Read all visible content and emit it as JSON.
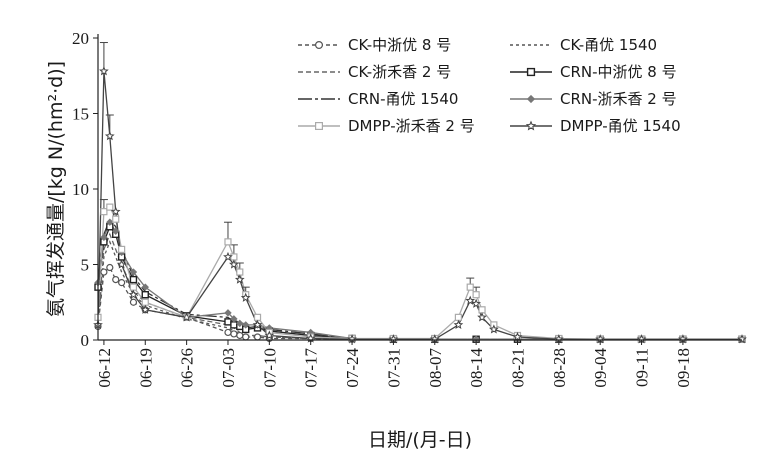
{
  "chart_data": {
    "type": "line",
    "xlabel": "日期/(月-日)",
    "ylabel": "氨气挥发通量/[kg N/(hm²·d)]",
    "ylim": [
      0,
      20
    ],
    "yticks": [
      0,
      5,
      10,
      15,
      20
    ],
    "xlim": [
      "2000-06-11",
      "2000-09-28"
    ],
    "xticks": [
      "06-12",
      "06-19",
      "06-26",
      "07-03",
      "07-10",
      "07-17",
      "07-24",
      "07-31",
      "08-07",
      "08-14",
      "08-21",
      "08-28",
      "09-04",
      "09-11",
      "09-18"
    ],
    "legend_position": "top-right",
    "grid": false,
    "series": [
      {
        "name": "CK-中浙优 8 号",
        "color": "#555555",
        "dash": "4,3",
        "marker": "circle",
        "points": [
          [
            "06-11",
            0.9
          ],
          [
            "06-12",
            4.5
          ],
          [
            "06-13",
            4.8
          ],
          [
            "06-14",
            4.0
          ],
          [
            "06-15",
            3.8
          ],
          [
            "06-17",
            2.5
          ],
          [
            "06-19",
            2.0
          ],
          [
            "06-26",
            1.5
          ],
          [
            "07-03",
            0.5
          ],
          [
            "07-04",
            0.4
          ],
          [
            "07-05",
            0.3
          ],
          [
            "07-06",
            0.2
          ],
          [
            "07-08",
            0.2
          ],
          [
            "07-10",
            0.1
          ],
          [
            "07-17",
            0.1
          ],
          [
            "07-24",
            0.05
          ],
          [
            "07-31",
            0.05
          ],
          [
            "08-07",
            0.05
          ],
          [
            "08-14",
            0.05
          ],
          [
            "08-21",
            0.05
          ],
          [
            "08-28",
            0.05
          ],
          [
            "09-04",
            0.05
          ],
          [
            "09-11",
            0.05
          ],
          [
            "09-18",
            0.05
          ],
          [
            "09-28",
            0.05
          ]
        ]
      },
      {
        "name": "CK-甬优 1540",
        "color": "#555555",
        "dash": "3,3",
        "marker": "none",
        "points": [
          [
            "06-11",
            1.0
          ],
          [
            "06-12",
            5.5
          ],
          [
            "06-13",
            6.5
          ],
          [
            "06-14",
            5.5
          ],
          [
            "06-15",
            4.5
          ],
          [
            "06-17",
            3.0
          ],
          [
            "06-19",
            2.3
          ],
          [
            "06-26",
            1.4
          ],
          [
            "07-03",
            0.8
          ],
          [
            "07-04",
            0.6
          ],
          [
            "07-05",
            0.4
          ],
          [
            "07-06",
            0.3
          ],
          [
            "07-08",
            0.3
          ],
          [
            "07-10",
            0.2
          ],
          [
            "07-17",
            0.1
          ],
          [
            "07-24",
            0.05
          ],
          [
            "07-31",
            0.05
          ],
          [
            "08-07",
            0.05
          ],
          [
            "08-14",
            0.05
          ],
          [
            "08-21",
            0.05
          ],
          [
            "08-28",
            0.05
          ],
          [
            "09-04",
            0.05
          ],
          [
            "09-11",
            0.05
          ],
          [
            "09-18",
            0.05
          ],
          [
            "09-28",
            0.05
          ]
        ]
      },
      {
        "name": "CK-浙禾香 2 号",
        "color": "#666666",
        "dash": "5,3",
        "marker": "none",
        "points": [
          [
            "06-11",
            1.2
          ],
          [
            "06-12",
            6.0
          ],
          [
            "06-13",
            7.0
          ],
          [
            "06-14",
            6.0
          ],
          [
            "06-15",
            5.0
          ],
          [
            "06-17",
            3.2
          ],
          [
            "06-19",
            2.5
          ],
          [
            "06-26",
            1.5
          ],
          [
            "07-03",
            1.0
          ],
          [
            "07-04",
            0.8
          ],
          [
            "07-05",
            0.5
          ],
          [
            "07-06",
            0.3
          ],
          [
            "07-08",
            0.3
          ],
          [
            "07-10",
            0.2
          ],
          [
            "07-17",
            0.1
          ],
          [
            "07-24",
            0.05
          ],
          [
            "07-31",
            0.05
          ],
          [
            "08-07",
            0.05
          ],
          [
            "08-14",
            0.05
          ],
          [
            "08-21",
            0.05
          ],
          [
            "08-28",
            0.05
          ],
          [
            "09-04",
            0.05
          ],
          [
            "09-11",
            0.05
          ],
          [
            "09-18",
            0.05
          ],
          [
            "09-28",
            0.05
          ]
        ]
      },
      {
        "name": "CRN-中浙优 8 号",
        "color": "#222222",
        "dash": "",
        "marker": "square",
        "points": [
          [
            "06-11",
            3.5
          ],
          [
            "06-12",
            6.5
          ],
          [
            "06-13",
            7.5
          ],
          [
            "06-14",
            7.0
          ],
          [
            "06-15",
            5.5
          ],
          [
            "06-17",
            4.0
          ],
          [
            "06-19",
            3.0
          ],
          [
            "06-26",
            1.6
          ],
          [
            "07-03",
            1.2
          ],
          [
            "07-04",
            1.0
          ],
          [
            "07-05",
            0.9
          ],
          [
            "07-06",
            0.7
          ],
          [
            "07-08",
            0.8
          ],
          [
            "07-10",
            0.6
          ],
          [
            "07-17",
            0.3
          ],
          [
            "07-24",
            0.1
          ],
          [
            "07-31",
            0.05
          ],
          [
            "08-07",
            0.05
          ],
          [
            "08-14",
            0.05
          ],
          [
            "08-21",
            0.05
          ],
          [
            "08-28",
            0.05
          ],
          [
            "09-04",
            0.05
          ],
          [
            "09-11",
            0.05
          ],
          [
            "09-18",
            0.05
          ],
          [
            "09-28",
            0.05
          ]
        ]
      },
      {
        "name": "CRN-甬优 1540",
        "color": "#333333",
        "dash": "14,3,3,3",
        "marker": "none",
        "points": [
          [
            "06-11",
            4.0
          ],
          [
            "06-12",
            7.0
          ],
          [
            "06-13",
            8.0
          ],
          [
            "06-14",
            7.5
          ],
          [
            "06-15",
            6.0
          ],
          [
            "06-17",
            4.2
          ],
          [
            "06-19",
            3.2
          ],
          [
            "06-26",
            1.7
          ],
          [
            "07-03",
            1.5
          ],
          [
            "07-04",
            1.2
          ],
          [
            "07-05",
            1.0
          ],
          [
            "07-06",
            0.8
          ],
          [
            "07-08",
            0.9
          ],
          [
            "07-10",
            0.7
          ],
          [
            "07-17",
            0.4
          ],
          [
            "07-24",
            0.1
          ],
          [
            "07-31",
            0.05
          ],
          [
            "08-07",
            0.05
          ],
          [
            "08-14",
            0.05
          ],
          [
            "08-21",
            0.05
          ],
          [
            "08-28",
            0.05
          ],
          [
            "09-04",
            0.05
          ],
          [
            "09-11",
            0.05
          ],
          [
            "09-18",
            0.05
          ],
          [
            "09-28",
            0.05
          ]
        ]
      },
      {
        "name": "CRN-浙禾香 2 号",
        "color": "#777777",
        "dash": "",
        "marker": "diamond",
        "points": [
          [
            "06-11",
            3.8
          ],
          [
            "06-12",
            6.8
          ],
          [
            "06-13",
            7.8
          ],
          [
            "06-14",
            7.2
          ],
          [
            "06-15",
            5.8
          ],
          [
            "06-17",
            4.5
          ],
          [
            "06-19",
            3.5
          ],
          [
            "06-26",
            1.5
          ],
          [
            "07-03",
            1.8
          ],
          [
            "07-04",
            1.4
          ],
          [
            "07-05",
            1.1
          ],
          [
            "07-06",
            1.0
          ],
          [
            "07-08",
            1.0
          ],
          [
            "07-10",
            0.8
          ],
          [
            "07-17",
            0.5
          ],
          [
            "07-24",
            0.1
          ],
          [
            "07-31",
            0.05
          ],
          [
            "08-07",
            0.05
          ],
          [
            "08-14",
            0.05
          ],
          [
            "08-21",
            0.05
          ],
          [
            "08-28",
            0.05
          ],
          [
            "09-04",
            0.05
          ],
          [
            "09-11",
            0.05
          ],
          [
            "09-18",
            0.05
          ],
          [
            "09-28",
            0.05
          ]
        ]
      },
      {
        "name": "DMPP-浙禾香 2 号",
        "color": "#aaaaaa",
        "dash": "",
        "marker": "square-open",
        "points": [
          [
            "06-11",
            1.5
          ],
          [
            "06-12",
            8.5
          ],
          [
            "06-13",
            8.8
          ],
          [
            "06-14",
            8.0
          ],
          [
            "06-15",
            6.0
          ],
          [
            "06-17",
            3.5
          ],
          [
            "06-19",
            2.5
          ],
          [
            "06-26",
            1.5
          ],
          [
            "07-03",
            6.5
          ],
          [
            "07-04",
            5.5
          ],
          [
            "07-05",
            4.5
          ],
          [
            "07-06",
            3.0
          ],
          [
            "07-08",
            1.5
          ],
          [
            "07-10",
            0.5
          ],
          [
            "07-17",
            0.2
          ],
          [
            "07-24",
            0.1
          ],
          [
            "07-31",
            0.1
          ],
          [
            "08-07",
            0.1
          ],
          [
            "08-11",
            1.5
          ],
          [
            "08-13",
            3.5
          ],
          [
            "08-14",
            3.0
          ],
          [
            "08-15",
            2.0
          ],
          [
            "08-17",
            1.0
          ],
          [
            "08-21",
            0.3
          ],
          [
            "08-28",
            0.1
          ],
          [
            "09-04",
            0.05
          ],
          [
            "09-11",
            0.05
          ],
          [
            "09-18",
            0.05
          ],
          [
            "09-28",
            0.05
          ]
        ]
      },
      {
        "name": "DMPP-甬优 1540",
        "color": "#444444",
        "dash": "",
        "marker": "star",
        "points": [
          [
            "06-11",
            1.0
          ],
          [
            "06-12",
            17.8
          ],
          [
            "06-13",
            13.5
          ],
          [
            "06-14",
            8.5
          ],
          [
            "06-15",
            5.0
          ],
          [
            "06-17",
            3.0
          ],
          [
            "06-19",
            2.0
          ],
          [
            "06-26",
            1.5
          ],
          [
            "07-03",
            5.5
          ],
          [
            "07-04",
            5.0
          ],
          [
            "07-05",
            4.0
          ],
          [
            "07-06",
            2.8
          ],
          [
            "07-08",
            1.0
          ],
          [
            "07-10",
            0.3
          ],
          [
            "07-17",
            0.1
          ],
          [
            "07-24",
            0.05
          ],
          [
            "07-31",
            0.05
          ],
          [
            "08-07",
            0.05
          ],
          [
            "08-11",
            1.0
          ],
          [
            "08-13",
            2.6
          ],
          [
            "08-14",
            2.4
          ],
          [
            "08-15",
            1.5
          ],
          [
            "08-17",
            0.7
          ],
          [
            "08-21",
            0.2
          ],
          [
            "08-28",
            0.05
          ],
          [
            "09-04",
            0.05
          ],
          [
            "09-11",
            0.05
          ],
          [
            "09-18",
            0.05
          ],
          [
            "09-28",
            0.05
          ]
        ]
      }
    ],
    "error_bars": [
      {
        "x": "06-12",
        "y": 17.8,
        "err": 1.9
      },
      {
        "x": "06-13",
        "y": 13.5,
        "err": 1.4
      },
      {
        "x": "06-12",
        "y": 8.5,
        "err": 0.8
      },
      {
        "x": "07-03",
        "y": 6.5,
        "err": 1.3
      },
      {
        "x": "07-04",
        "y": 5.5,
        "err": 0.8
      },
      {
        "x": "07-05",
        "y": 4.5,
        "err": 0.6
      },
      {
        "x": "07-06",
        "y": 3.0,
        "err": 0.5
      },
      {
        "x": "08-13",
        "y": 3.5,
        "err": 0.6
      },
      {
        "x": "08-14",
        "y": 3.0,
        "err": 0.5
      }
    ]
  }
}
